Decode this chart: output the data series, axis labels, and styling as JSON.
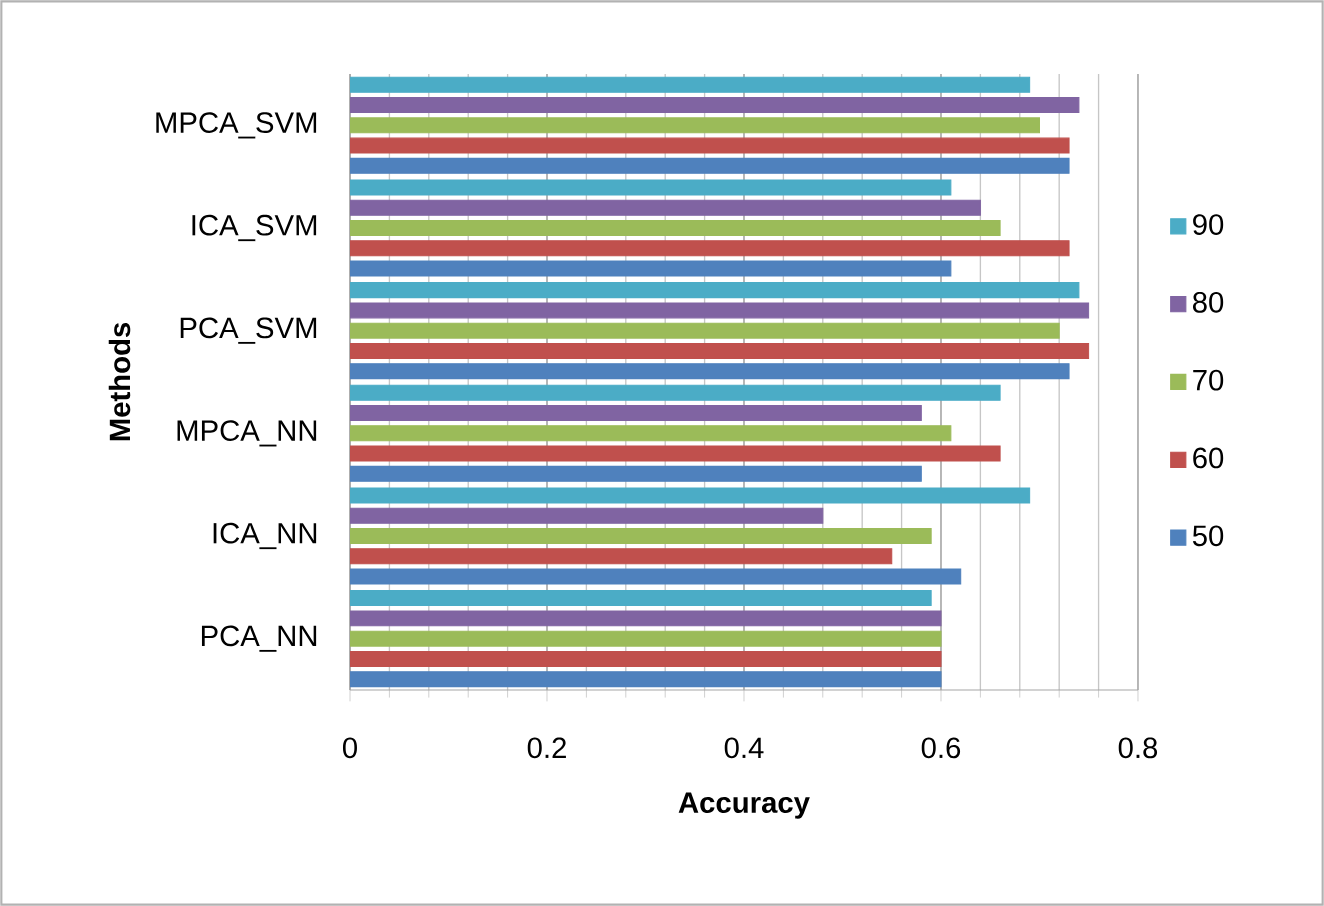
{
  "chart_data": {
    "type": "bar",
    "orientation": "horizontal",
    "xlabel": "Accuracy",
    "ylabel": "Methods",
    "categories": [
      "MPCA_SVM",
      "ICA_SVM",
      "PCA_SVM",
      "MPCA_NN",
      "ICA_NN",
      "PCA_NN"
    ],
    "series": [
      {
        "name": "50",
        "color": "#4f81bd",
        "values": [
          0.73,
          0.61,
          0.73,
          0.58,
          0.62,
          0.6
        ]
      },
      {
        "name": "60",
        "color": "#c0504d",
        "values": [
          0.73,
          0.73,
          0.75,
          0.66,
          0.55,
          0.6
        ]
      },
      {
        "name": "70",
        "color": "#9bbb59",
        "values": [
          0.7,
          0.66,
          0.72,
          0.61,
          0.59,
          0.6
        ]
      },
      {
        "name": "80",
        "color": "#8064a2",
        "values": [
          0.74,
          0.64,
          0.75,
          0.58,
          0.48,
          0.6
        ]
      },
      {
        "name": "90",
        "color": "#4bacc6",
        "values": [
          0.69,
          0.61,
          0.74,
          0.66,
          0.69,
          0.59
        ]
      }
    ],
    "xlim": [
      0,
      0.8
    ],
    "xticks": [
      0,
      0.2,
      0.4,
      0.6,
      0.8
    ],
    "grid": "x",
    "legend": "right"
  }
}
